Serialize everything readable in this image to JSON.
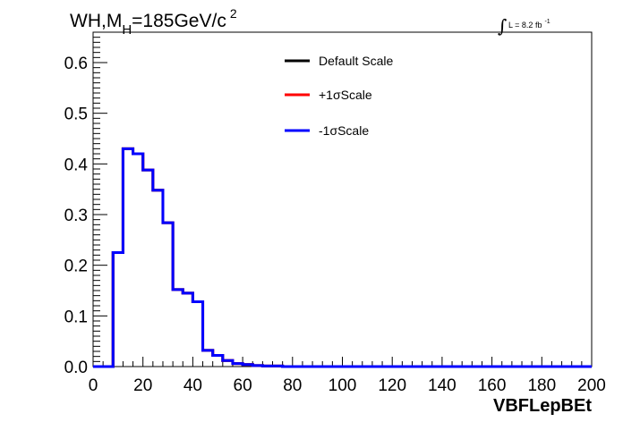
{
  "chart_data": {
    "type": "line",
    "title": {
      "main": "WH,M",
      "subscript": "H",
      "rest": "=185GeV/c",
      "superscript": "2"
    },
    "lumi_label": {
      "integral": "∫",
      "text": "L = 8.2 fb",
      "superscript": "-1"
    },
    "xlabel": "VBFLepBEt",
    "ylabel": "",
    "xlim": [
      0,
      200
    ],
    "ylim": [
      0,
      0.66
    ],
    "x_ticks": [
      0,
      20,
      40,
      60,
      80,
      100,
      120,
      140,
      160,
      180,
      200
    ],
    "y_ticks": [
      0.0,
      0.1,
      0.2,
      0.3,
      0.4,
      0.5,
      0.6
    ],
    "y_tick_labels": [
      "0.0",
      "0.1",
      "0.2",
      "0.3",
      "0.4",
      "0.5",
      "0.6"
    ],
    "bin_edges": [
      0,
      4,
      8,
      12,
      16,
      20,
      24,
      28,
      32,
      36,
      40,
      44,
      48,
      52,
      56,
      60,
      64,
      68,
      72,
      76,
      80,
      84,
      88,
      92,
      96,
      100,
      104,
      108,
      112,
      116,
      120,
      124,
      128,
      132,
      136,
      140,
      144,
      148,
      152,
      156,
      160,
      164,
      168,
      172,
      176,
      180,
      184,
      188,
      192,
      196,
      200
    ],
    "legend_position": "top-center",
    "series": [
      {
        "name": "Default Scale",
        "color": "#000000",
        "values": [
          0,
          0,
          0.225,
          0.43,
          0.42,
          0.388,
          0.348,
          0.284,
          0.152,
          0.145,
          0.128,
          0.032,
          0.022,
          0.012,
          0.006,
          0.004,
          0.002,
          0.001,
          0.001,
          0,
          0,
          0,
          0,
          0,
          0,
          0,
          0,
          0,
          0,
          0,
          0,
          0,
          0,
          0,
          0,
          0,
          0,
          0,
          0,
          0,
          0,
          0,
          0,
          0,
          0,
          0,
          0,
          0,
          0,
          0
        ]
      },
      {
        "name": "+1σScale",
        "color": "#ff0000",
        "values": [
          0,
          0,
          0.225,
          0.43,
          0.42,
          0.388,
          0.348,
          0.284,
          0.152,
          0.145,
          0.128,
          0.032,
          0.022,
          0.012,
          0.006,
          0.004,
          0.002,
          0.001,
          0.001,
          0,
          0,
          0,
          0,
          0,
          0,
          0,
          0,
          0,
          0,
          0,
          0,
          0,
          0,
          0,
          0,
          0,
          0,
          0,
          0,
          0,
          0,
          0,
          0,
          0,
          0,
          0,
          0,
          0,
          0,
          0
        ]
      },
      {
        "name": "-1σScale",
        "color": "#0000ff",
        "values": [
          0,
          0,
          0.225,
          0.43,
          0.42,
          0.388,
          0.348,
          0.284,
          0.152,
          0.145,
          0.128,
          0.032,
          0.022,
          0.012,
          0.006,
          0.004,
          0.002,
          0.001,
          0.001,
          0,
          0,
          0,
          0,
          0,
          0,
          0,
          0,
          0,
          0,
          0,
          0,
          0,
          0,
          0,
          0,
          0,
          0,
          0,
          0,
          0,
          0,
          0,
          0,
          0,
          0,
          0,
          0,
          0,
          0,
          0,
          0
        ]
      }
    ]
  }
}
